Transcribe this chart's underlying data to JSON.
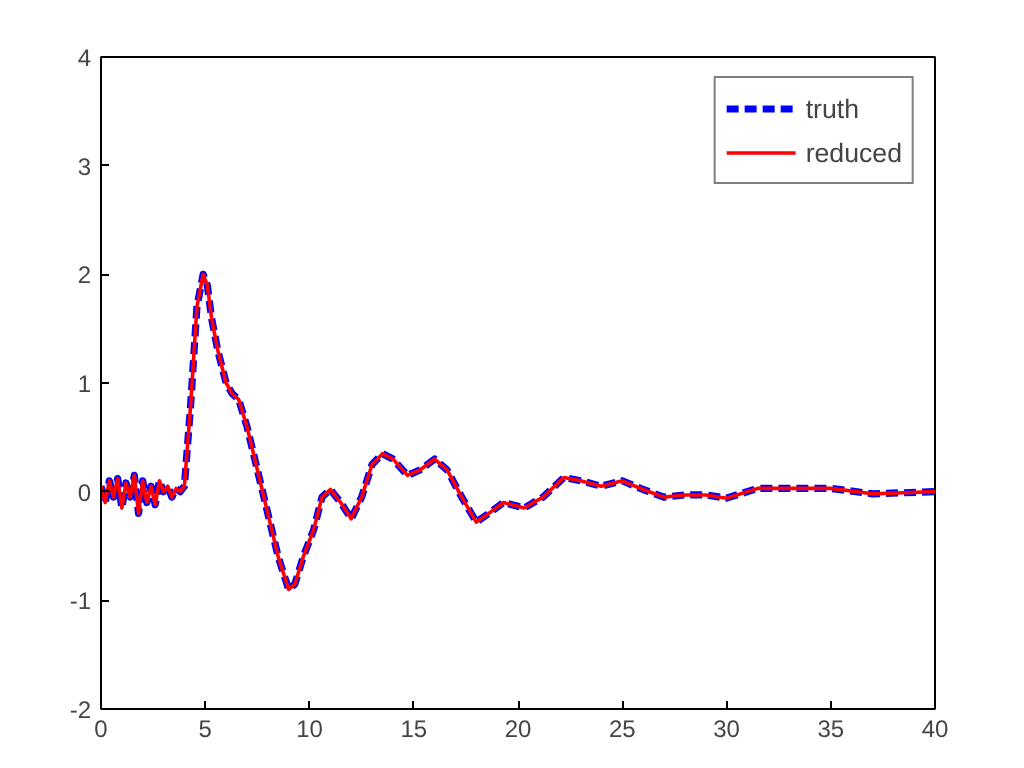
{
  "chart_data": {
    "type": "line",
    "x": [
      0,
      0.2,
      0.4,
      0.6,
      0.8,
      1,
      1.2,
      1.4,
      1.6,
      1.8,
      2,
      2.2,
      2.4,
      2.6,
      2.8,
      3,
      3.2,
      3.4,
      3.6,
      3.8,
      4,
      4.3,
      4.6,
      4.9,
      5.1,
      5.3,
      5.6,
      6,
      6.3,
      6.6,
      7,
      7.5,
      8,
      8.5,
      9,
      9.3,
      9.7,
      10.2,
      10.6,
      11,
      11.5,
      12,
      12.5,
      13,
      13.5,
      14,
      14.7,
      15.3,
      16,
      16.6,
      17.3,
      18,
      18.6,
      19.3,
      20.3,
      21.2,
      22.2,
      23,
      24,
      25,
      26,
      27,
      28,
      29,
      30,
      31.5,
      33,
      35,
      37,
      38.5,
      40
    ],
    "series": [
      {
        "name": "truth",
        "color": "#0000ff",
        "line_style": "dashed",
        "values": [
          0.05,
          -0.1,
          0.1,
          -0.05,
          0.12,
          -0.15,
          0.08,
          -0.05,
          0.15,
          -0.2,
          0.1,
          -0.1,
          0.05,
          -0.12,
          0.1,
          0,
          0.05,
          -0.05,
          0.03,
          0,
          0.05,
          0.8,
          1.7,
          2.0,
          1.9,
          1.6,
          1.3,
          1.0,
          0.9,
          0.85,
          0.6,
          0.2,
          -0.2,
          -0.6,
          -0.9,
          -0.85,
          -0.6,
          -0.35,
          -0.05,
          0.02,
          -0.1,
          -0.25,
          -0.05,
          0.25,
          0.35,
          0.3,
          0.15,
          0.2,
          0.3,
          0.2,
          -0.05,
          -0.28,
          -0.2,
          -0.1,
          -0.15,
          -0.05,
          0.13,
          0.1,
          0.05,
          0.1,
          0.02,
          -0.05,
          -0.03,
          -0.03,
          -0.06,
          0.03,
          0.03,
          0.03,
          -0.02,
          -0.01,
          0
        ]
      },
      {
        "name": "reduced",
        "color": "#ff0000",
        "line_style": "solid",
        "values": [
          0.05,
          -0.1,
          0.1,
          -0.05,
          0.12,
          -0.15,
          0.08,
          -0.05,
          0.15,
          -0.2,
          0.1,
          -0.1,
          0.05,
          -0.12,
          0.1,
          0,
          0.05,
          -0.05,
          0.03,
          0,
          0.05,
          0.8,
          1.7,
          2.0,
          1.9,
          1.6,
          1.3,
          1.0,
          0.9,
          0.85,
          0.6,
          0.2,
          -0.2,
          -0.6,
          -0.9,
          -0.85,
          -0.6,
          -0.35,
          -0.05,
          0.02,
          -0.1,
          -0.25,
          -0.05,
          0.25,
          0.35,
          0.3,
          0.15,
          0.2,
          0.3,
          0.2,
          -0.05,
          -0.28,
          -0.2,
          -0.1,
          -0.15,
          -0.05,
          0.13,
          0.1,
          0.05,
          0.1,
          0.02,
          -0.05,
          -0.03,
          -0.03,
          -0.06,
          0.03,
          0.03,
          0.03,
          -0.02,
          -0.01,
          0
        ]
      }
    ],
    "xlim": [
      0,
      40
    ],
    "ylim": [
      -2,
      4
    ],
    "xticks": [
      0,
      5,
      10,
      15,
      20,
      25,
      30,
      35,
      40
    ],
    "yticks": [
      -2,
      -1,
      0,
      1,
      2,
      3,
      4
    ],
    "grid": false,
    "legend": "top right"
  }
}
